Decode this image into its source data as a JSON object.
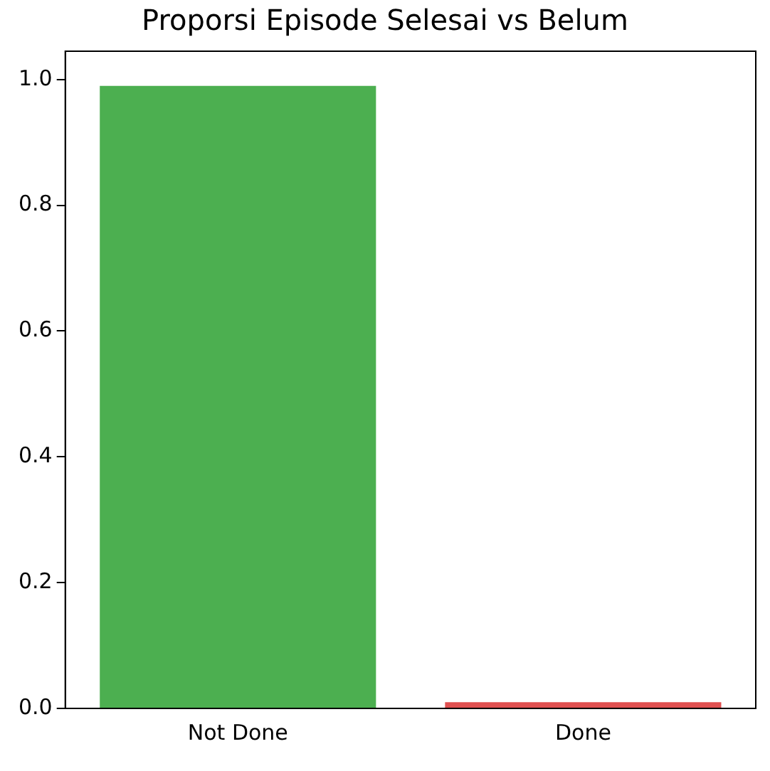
{
  "chart_data": {
    "type": "bar",
    "title": "Proporsi Episode Selesai vs Belum",
    "categories": [
      "Not Done",
      "Done"
    ],
    "values": [
      0.99,
      0.01
    ],
    "colors": [
      "#4caf50",
      "#e05050"
    ],
    "ylim": [
      0,
      1.045
    ],
    "yticks": [
      {
        "value": 0,
        "label": "0.0"
      },
      {
        "value": 0.2,
        "label": "0.2"
      },
      {
        "value": 0.4,
        "label": "0.4"
      },
      {
        "value": 0.6,
        "label": "0.6"
      },
      {
        "value": 0.8,
        "label": "0.8"
      },
      {
        "value": 1,
        "label": "1.0"
      }
    ],
    "grid": false,
    "legend": false
  }
}
